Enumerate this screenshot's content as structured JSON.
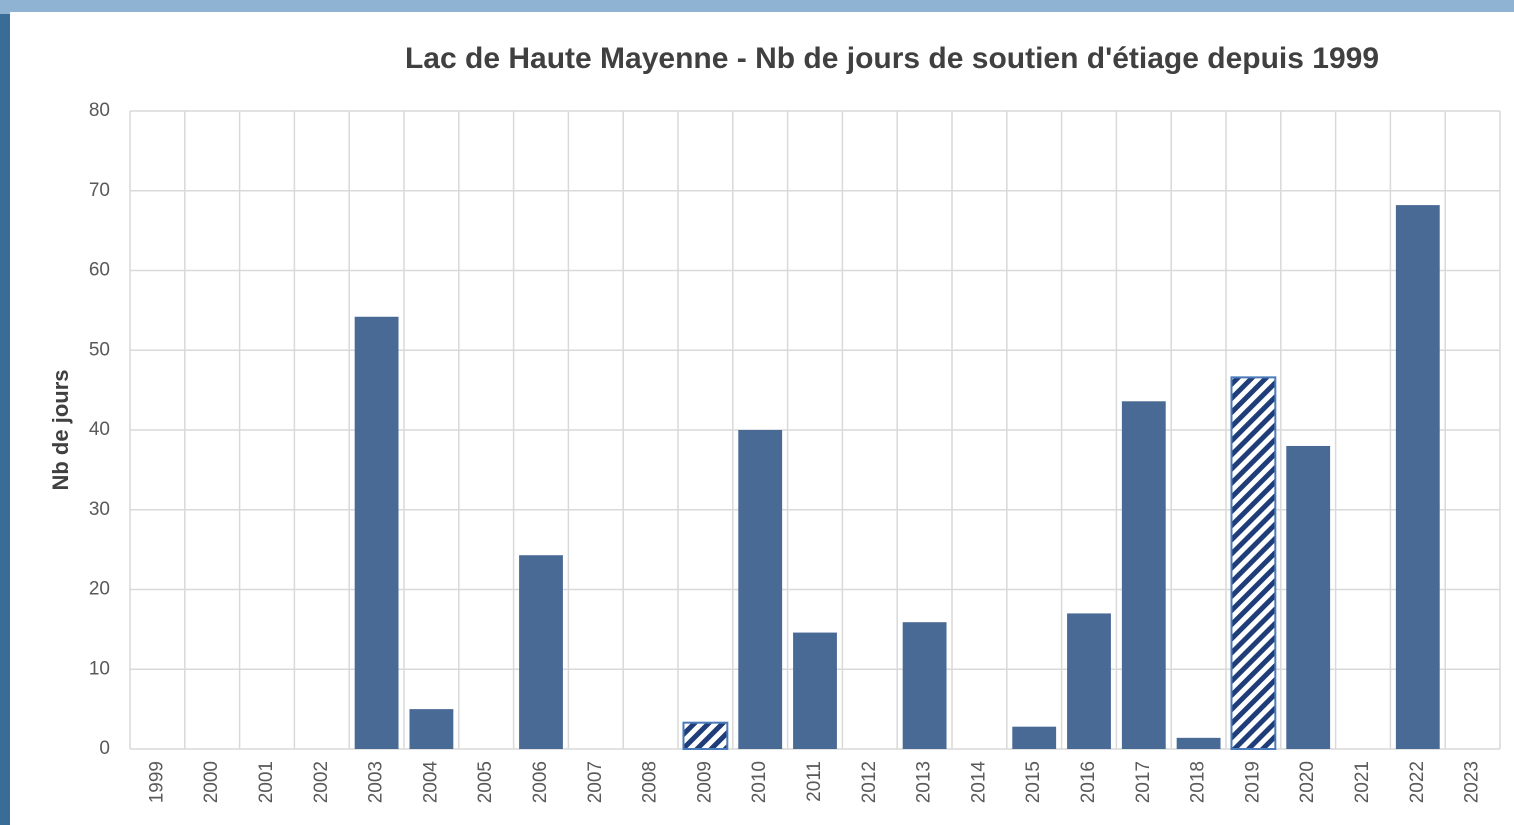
{
  "chart_data": {
    "type": "bar",
    "title": "Lac de Haute Mayenne - Nb de jours de soutien d'étiage depuis 1999",
    "y_label": "Nb de jours",
    "categories": [
      "1999",
      "2000",
      "2001",
      "2002",
      "2003",
      "2004",
      "2005",
      "2006",
      "2007",
      "2008",
      "2009",
      "2010",
      "2011",
      "2012",
      "2013",
      "2014",
      "2015",
      "2016",
      "2017",
      "2018",
      "2019",
      "2020",
      "2021",
      "2022",
      "2023"
    ],
    "values": [
      0,
      0,
      0,
      0,
      54.2,
      5,
      0,
      24.3,
      0,
      0,
      3.3,
      40,
      14.6,
      0,
      15.9,
      0,
      2.8,
      17,
      43.6,
      1.4,
      46.6,
      38,
      0,
      68.2,
      0
    ],
    "hatched": [
      false,
      false,
      false,
      false,
      false,
      false,
      false,
      false,
      false,
      false,
      true,
      false,
      false,
      false,
      false,
      false,
      false,
      false,
      false,
      false,
      true,
      false,
      false,
      false,
      false
    ],
    "color": "#4a6a96",
    "ylim": [
      0,
      80
    ],
    "yticks": [
      0,
      10,
      20,
      30,
      40,
      50,
      60,
      70,
      80
    ],
    "grid": true
  }
}
